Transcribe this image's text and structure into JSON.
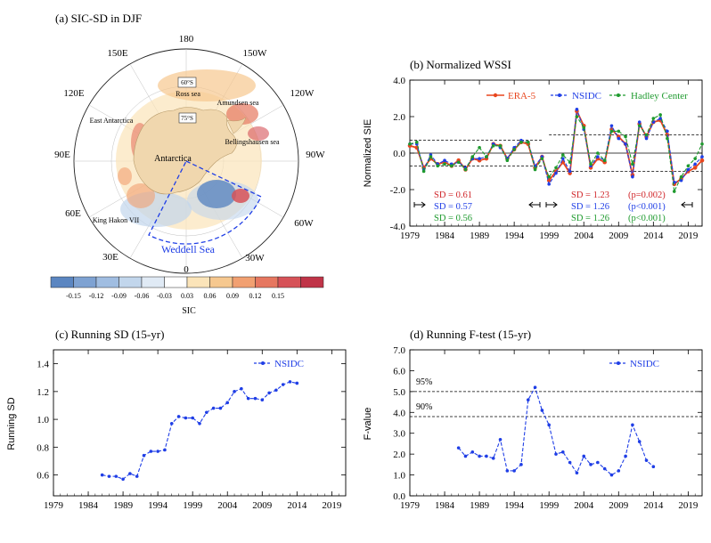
{
  "figure": {
    "panel_a": {
      "title": "(a) SIC-SD in DJF",
      "lon_labels": [
        "180",
        "150W",
        "120W",
        "90W",
        "60W",
        "30W",
        "0",
        "30E",
        "60E",
        "90E",
        "120E",
        "150E"
      ],
      "lat_labels": [
        "60°S",
        "75°S"
      ],
      "region_labels": [
        "Ross sea",
        "Amundsen sea",
        "Bellingshausen sea",
        "Antarctica",
        "East Antarctica",
        "King Hakon VII",
        "Weddell Sea"
      ],
      "colorbar": {
        "label": "SIC",
        "tick_labels": [
          "-0.15",
          "-0.12",
          "-0.09",
          "-0.06",
          "-0.03",
          "0.03",
          "0.06",
          "0.09",
          "0.12",
          "0.15"
        ],
        "colors": [
          "#5b86c1",
          "#7ea2d2",
          "#a0bde1",
          "#c2d6ec",
          "#e0eaf5",
          "#ffffff",
          "#fbe4b9",
          "#f6c88f",
          "#f1a071",
          "#e67760",
          "#d65258",
          "#c03448"
        ]
      }
    },
    "panel_b": {
      "title": "(b) Normalized WSSI",
      "ylabel": "Normalized SIE",
      "legend": [
        "ERA-5",
        "NSIDC",
        "Hadley Center"
      ],
      "sd_left": [
        "SD = 0.61",
        "SD = 0.57",
        "SD = 0.56"
      ],
      "sd_right": [
        "SD = 1.23",
        "SD = 1.26",
        "SD = 1.26"
      ],
      "p_values": [
        "(p=0.002)",
        "(p<0.001)",
        "(p<0.001)"
      ]
    },
    "panel_c": {
      "title": "(c) Running SD  (15-yr)",
      "ylabel": "Running SD",
      "legend": "NSIDC"
    },
    "panel_d": {
      "title": "(d) Running F-test  (15-yr)",
      "ylabel": "F-value",
      "legend": "NSIDC",
      "ref_labels": [
        "95%",
        "90%"
      ]
    }
  },
  "chart_data": [
    {
      "type": "line",
      "panel": "b",
      "title": "(b) Normalized WSSI",
      "ylabel": "Normalized SIE",
      "xlim": [
        1979,
        2021
      ],
      "ylim": [
        -4,
        4
      ],
      "x_ticks": [
        1979,
        1984,
        1989,
        1994,
        1999,
        2004,
        2009,
        2014,
        2019
      ],
      "y_ticks": [
        -4,
        -2,
        0,
        2,
        4
      ],
      "y_tick_labels": [
        "-4.0",
        "-2.0",
        "0.0",
        "2.0",
        "4.0"
      ],
      "x": [
        1979,
        1980,
        1981,
        1982,
        1983,
        1984,
        1985,
        1986,
        1987,
        1988,
        1989,
        1990,
        1991,
        1992,
        1993,
        1994,
        1995,
        1996,
        1997,
        1998,
        1999,
        2000,
        2001,
        2002,
        2003,
        2004,
        2005,
        2006,
        2007,
        2008,
        2009,
        2010,
        2011,
        2012,
        2013,
        2014,
        2015,
        2016,
        2017,
        2018,
        2019,
        2020,
        2021
      ],
      "series": [
        {
          "name": "ERA-5",
          "color": "#e8461e",
          "values": [
            0.4,
            0.3,
            -0.8,
            -0.3,
            -0.6,
            -0.5,
            -0.7,
            -0.4,
            -0.9,
            -0.3,
            -0.4,
            -0.3,
            0.5,
            0.4,
            -0.3,
            0.2,
            0.6,
            0.5,
            -0.8,
            -0.2,
            -1.5,
            -1.0,
            -0.5,
            -1.1,
            2.3,
            1.5,
            -0.8,
            -0.3,
            -0.5,
            1.3,
            0.9,
            0.5,
            -1.2,
            1.6,
            0.9,
            1.7,
            1.8,
            1.0,
            -1.7,
            -1.4,
            -1.0,
            -0.8,
            -0.4
          ]
        },
        {
          "name": "NSIDC",
          "color": "#1f3ee6",
          "values": [
            0.5,
            0.5,
            -0.9,
            -0.1,
            -0.6,
            -0.4,
            -0.6,
            -0.5,
            -0.8,
            -0.3,
            -0.3,
            -0.2,
            0.5,
            0.3,
            -0.3,
            0.3,
            0.7,
            0.6,
            -0.7,
            -0.2,
            -1.7,
            -1.1,
            -0.3,
            -1.0,
            2.4,
            1.3,
            -0.7,
            -0.2,
            -0.4,
            1.5,
            0.8,
            0.5,
            -1.3,
            1.7,
            0.8,
            1.7,
            1.9,
            1.2,
            -1.6,
            -1.5,
            -0.9,
            -0.6,
            -0.2
          ]
        },
        {
          "name": "Hadley Center",
          "color": "#1e9a2e",
          "values": [
            0.5,
            0.6,
            -1.0,
            -0.2,
            -0.7,
            -0.6,
            -0.7,
            -0.5,
            -0.9,
            -0.2,
            0.3,
            -0.2,
            0.4,
            0.4,
            -0.4,
            0.2,
            0.6,
            0.6,
            -0.9,
            -0.3,
            -1.3,
            -0.8,
            -0.1,
            -0.5,
            2.0,
            1.4,
            -0.6,
            0.0,
            -0.4,
            1.2,
            1.2,
            0.9,
            -0.6,
            1.5,
            1.0,
            1.9,
            2.1,
            0.8,
            -2.1,
            -1.3,
            -0.7,
            -0.3,
            0.5
          ]
        }
      ],
      "reference_lines": {
        "left": {
          "x": [
            1979,
            1998
          ],
          "y": [
            0.7,
            -0.7
          ]
        },
        "right": {
          "x": [
            1999,
            2021
          ],
          "y": [
            1.0,
            -1.0
          ]
        }
      }
    },
    {
      "type": "line",
      "panel": "c",
      "title": "(c) Running SD  (15-yr)",
      "ylabel": "Running SD",
      "xlim": [
        1979,
        2021
      ],
      "ylim": [
        0.45,
        1.5
      ],
      "x_ticks": [
        1979,
        1984,
        1989,
        1994,
        1999,
        2004,
        2009,
        2014,
        2019
      ],
      "y_ticks": [
        0.6,
        0.8,
        1.0,
        1.2,
        1.4
      ],
      "y_tick_labels": [
        "0.6",
        "0.8",
        "1.0",
        "1.2",
        "1.4"
      ],
      "x": [
        1986,
        1987,
        1988,
        1989,
        1990,
        1991,
        1992,
        1993,
        1994,
        1995,
        1996,
        1997,
        1998,
        1999,
        2000,
        2001,
        2002,
        2003,
        2004,
        2005,
        2006,
        2007,
        2008,
        2009,
        2010,
        2011,
        2012,
        2013,
        2014
      ],
      "series": [
        {
          "name": "NSIDC",
          "color": "#1f3ee6",
          "values": [
            0.6,
            0.59,
            0.59,
            0.57,
            0.61,
            0.59,
            0.74,
            0.77,
            0.77,
            0.78,
            0.97,
            1.02,
            1.01,
            1.01,
            0.97,
            1.05,
            1.08,
            1.08,
            1.12,
            1.2,
            1.22,
            1.15,
            1.15,
            1.14,
            1.19,
            1.21,
            1.25,
            1.27,
            1.26
          ]
        }
      ]
    },
    {
      "type": "line",
      "panel": "d",
      "title": "(d) Running F-test  (15-yr)",
      "ylabel": "F-value",
      "xlim": [
        1979,
        2021
      ],
      "ylim": [
        0,
        7
      ],
      "x_ticks": [
        1979,
        1984,
        1989,
        1994,
        1999,
        2004,
        2009,
        2014,
        2019
      ],
      "y_ticks": [
        0,
        1,
        2,
        3,
        4,
        5,
        6,
        7
      ],
      "y_tick_labels": [
        "0.0",
        "1.0",
        "2.0",
        "3.0",
        "4.0",
        "5.0",
        "6.0",
        "7.0"
      ],
      "x": [
        1986,
        1987,
        1988,
        1989,
        1990,
        1991,
        1992,
        1993,
        1994,
        1995,
        1996,
        1997,
        1998,
        1999,
        2000,
        2001,
        2002,
        2003,
        2004,
        2005,
        2006,
        2007,
        2008,
        2009,
        2010,
        2011,
        2012,
        2013,
        2014
      ],
      "series": [
        {
          "name": "NSIDC",
          "color": "#1f3ee6",
          "values": [
            2.3,
            1.9,
            2.1,
            1.9,
            1.9,
            1.8,
            2.7,
            1.2,
            1.2,
            1.5,
            4.6,
            5.2,
            4.1,
            3.4,
            2.0,
            2.1,
            1.6,
            1.1,
            1.9,
            1.5,
            1.6,
            1.3,
            1.0,
            1.2,
            1.9,
            3.4,
            2.6,
            1.7,
            1.4
          ]
        }
      ],
      "reference_lines": [
        {
          "label": "95%",
          "y": 5.0
        },
        {
          "label": "90%",
          "y": 3.8
        }
      ]
    }
  ]
}
